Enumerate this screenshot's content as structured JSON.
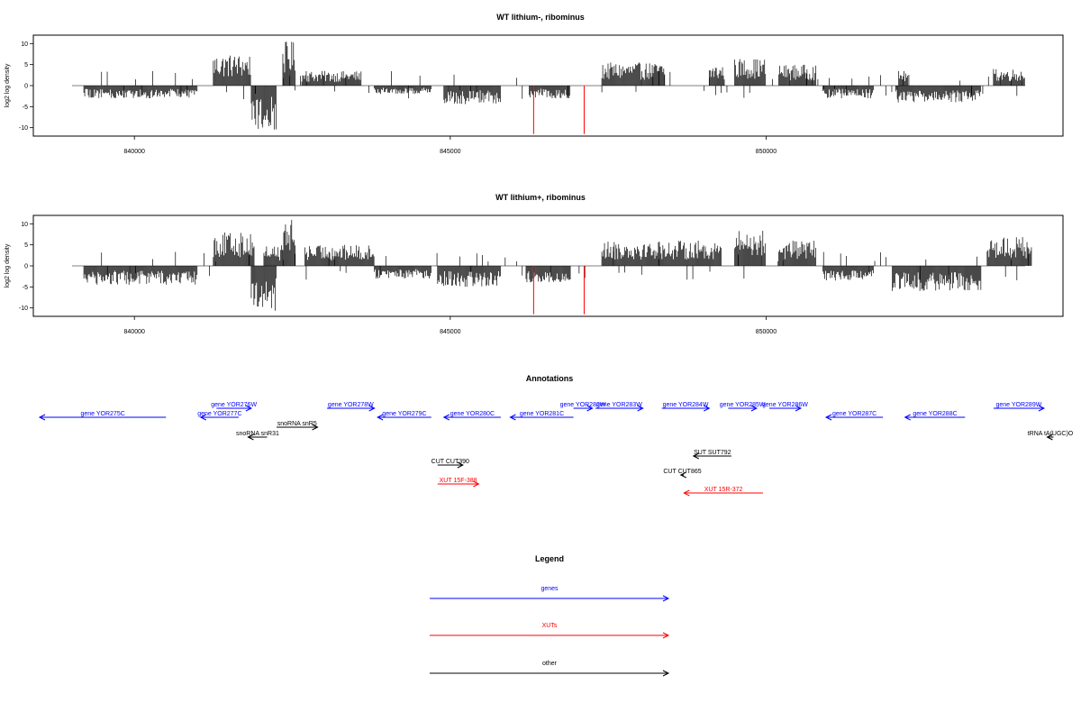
{
  "colors": {
    "gene": "#0000ff",
    "xut": "#ff0000",
    "other": "#000000",
    "frame": "#000000",
    "highlight": "#ff0000"
  },
  "chart_data": [
    {
      "type": "bar",
      "title": "WT lithium-, ribominus",
      "ylabel": "log2 log density",
      "xlim": [
        838400,
        854700
      ],
      "ylim": [
        -12,
        12
      ],
      "x_ticks": [
        840000,
        845000,
        850000
      ],
      "x_tick_labels": [
        "840000",
        "845000",
        "850000"
      ],
      "y_ticks": [
        10,
        5,
        0,
        -5,
        -10
      ],
      "y_tick_labels": [
        "10",
        "5",
        "0",
        "-5",
        "-10"
      ],
      "positive_clusters": [
        {
          "start": 841250,
          "end": 841850,
          "max": 7.5
        },
        {
          "start": 842350,
          "end": 842550,
          "max": 10.5
        },
        {
          "start": 842650,
          "end": 843600,
          "max": 3.5
        },
        {
          "start": 847400,
          "end": 848400,
          "max": 5.5
        },
        {
          "start": 849100,
          "end": 849350,
          "max": 5.0
        },
        {
          "start": 849500,
          "end": 850000,
          "max": 6.5
        },
        {
          "start": 850200,
          "end": 850800,
          "max": 5.0
        },
        {
          "start": 852100,
          "end": 852250,
          "max": 3.5
        },
        {
          "start": 853600,
          "end": 854100,
          "max": 4.0
        }
      ],
      "negative_clusters": [
        {
          "start": 839200,
          "end": 841000,
          "min": -3.0
        },
        {
          "start": 841850,
          "end": 842250,
          "min": -10.5
        },
        {
          "start": 843800,
          "end": 844700,
          "min": -2.0
        },
        {
          "start": 844900,
          "end": 845800,
          "min": -4.5
        },
        {
          "start": 846250,
          "end": 846900,
          "min": -3.0
        },
        {
          "start": 850900,
          "end": 851700,
          "min": -3.0
        },
        {
          "start": 852050,
          "end": 853400,
          "min": -4.0
        }
      ],
      "highlights": [
        {
          "x": 846320,
          "min": -11.5
        },
        {
          "x": 847120,
          "min": -11.5
        }
      ]
    },
    {
      "type": "bar",
      "title": "WT lithium+, ribominus",
      "ylabel": "log2 log density",
      "xlim": [
        838400,
        854700
      ],
      "ylim": [
        -12,
        12
      ],
      "x_ticks": [
        840000,
        845000,
        850000
      ],
      "x_tick_labels": [
        "840000",
        "845000",
        "850000"
      ],
      "y_ticks": [
        10,
        5,
        0,
        -5,
        -10
      ],
      "y_tick_labels": [
        "10",
        "5",
        "0",
        "-5",
        "-10"
      ],
      "positive_clusters": [
        {
          "start": 841250,
          "end": 841900,
          "max": 8.0
        },
        {
          "start": 842050,
          "end": 842350,
          "max": 5.0
        },
        {
          "start": 842350,
          "end": 842550,
          "max": 11.0
        },
        {
          "start": 842700,
          "end": 843800,
          "max": 5.0
        },
        {
          "start": 847400,
          "end": 849300,
          "max": 6.0
        },
        {
          "start": 849500,
          "end": 850000,
          "max": 8.5
        },
        {
          "start": 850200,
          "end": 850800,
          "max": 6.0
        },
        {
          "start": 853500,
          "end": 854200,
          "max": 7.0
        }
      ],
      "negative_clusters": [
        {
          "start": 839200,
          "end": 841000,
          "min": -4.5
        },
        {
          "start": 841850,
          "end": 842250,
          "min": -11.0
        },
        {
          "start": 843800,
          "end": 844700,
          "min": -3.0
        },
        {
          "start": 844800,
          "end": 845800,
          "min": -5.0
        },
        {
          "start": 846200,
          "end": 846900,
          "min": -4.0
        },
        {
          "start": 850900,
          "end": 851700,
          "min": -3.5
        },
        {
          "start": 852000,
          "end": 853400,
          "min": -6.0
        }
      ],
      "highlights": [
        {
          "x": 846320,
          "min": -11.5
        },
        {
          "x": 847120,
          "min": -11.5
        }
      ]
    }
  ],
  "annotations": {
    "title": "Annotations",
    "features": [
      {
        "label": "gene YOR275C",
        "type": "gene",
        "start": 838500,
        "end": 840500,
        "dir": "left",
        "row": 2
      },
      {
        "label": "gene YOR276W",
        "type": "gene",
        "start": 841300,
        "end": 841850,
        "dir": "right",
        "row": 1
      },
      {
        "label": "gene YOR277C",
        "type": "gene",
        "start": 841050,
        "end": 841650,
        "dir": "left",
        "row": 2
      },
      {
        "label": "snoRNA snR5",
        "type": "other",
        "start": 842250,
        "end": 842900,
        "dir": "right",
        "row": 3
      },
      {
        "label": "snoRNA snR31",
        "type": "other",
        "start": 841800,
        "end": 842100,
        "dir": "left",
        "row": 4
      },
      {
        "label": "gene YOR278W",
        "type": "gene",
        "start": 843050,
        "end": 843800,
        "dir": "right",
        "row": 1
      },
      {
        "label": "gene YOR279C",
        "type": "gene",
        "start": 843850,
        "end": 844700,
        "dir": "left",
        "row": 2
      },
      {
        "label": "gene YOR280C",
        "type": "gene",
        "start": 844900,
        "end": 845800,
        "dir": "left",
        "row": 2
      },
      {
        "label": "gene YOR281C",
        "type": "gene",
        "start": 845950,
        "end": 846950,
        "dir": "left",
        "row": 2
      },
      {
        "label": "gene YOR282W",
        "type": "gene",
        "start": 846950,
        "end": 847250,
        "dir": "right",
        "row": 1
      },
      {
        "label": "gene YOR283W",
        "type": "gene",
        "start": 847300,
        "end": 848050,
        "dir": "right",
        "row": 1
      },
      {
        "label": "gene YOR284W",
        "type": "gene",
        "start": 848350,
        "end": 849100,
        "dir": "right",
        "row": 1
      },
      {
        "label": "gene YOR285W",
        "type": "gene",
        "start": 849400,
        "end": 849850,
        "dir": "right",
        "row": 1
      },
      {
        "label": "gene YOR286W",
        "type": "gene",
        "start": 850050,
        "end": 850550,
        "dir": "right",
        "row": 1
      },
      {
        "label": "gene YOR287C",
        "type": "gene",
        "start": 850950,
        "end": 851850,
        "dir": "left",
        "row": 2
      },
      {
        "label": "gene YOR288C",
        "type": "gene",
        "start": 852200,
        "end": 853150,
        "dir": "left",
        "row": 2
      },
      {
        "label": "gene YOR289W",
        "type": "gene",
        "start": 853600,
        "end": 854400,
        "dir": "right",
        "row": 1
      },
      {
        "label": "tRNA tA(UGC)O",
        "type": "other",
        "start": 854450,
        "end": 854550,
        "dir": "left",
        "row": 4
      },
      {
        "label": "SUT SUT792",
        "type": "other",
        "start": 848850,
        "end": 849450,
        "dir": "left",
        "row": 5
      },
      {
        "label": "CUT CUT390",
        "type": "other",
        "start": 844800,
        "end": 845200,
        "dir": "right",
        "row": 6
      },
      {
        "label": "CUT CUT865",
        "type": "other",
        "start": 848650,
        "end": 848700,
        "dir": "left",
        "row": 7
      },
      {
        "label": "XUT 15F-388",
        "type": "xut",
        "start": 844800,
        "end": 845450,
        "dir": "right",
        "row": 8
      },
      {
        "label": "XUT 15R-372",
        "type": "xut",
        "start": 848700,
        "end": 849950,
        "dir": "left",
        "row": 9
      }
    ]
  },
  "legend": {
    "title": "Legend",
    "items": [
      {
        "label": "genes",
        "type": "gene"
      },
      {
        "label": "XUTs",
        "type": "xut"
      },
      {
        "label": "other",
        "type": "other"
      }
    ]
  }
}
